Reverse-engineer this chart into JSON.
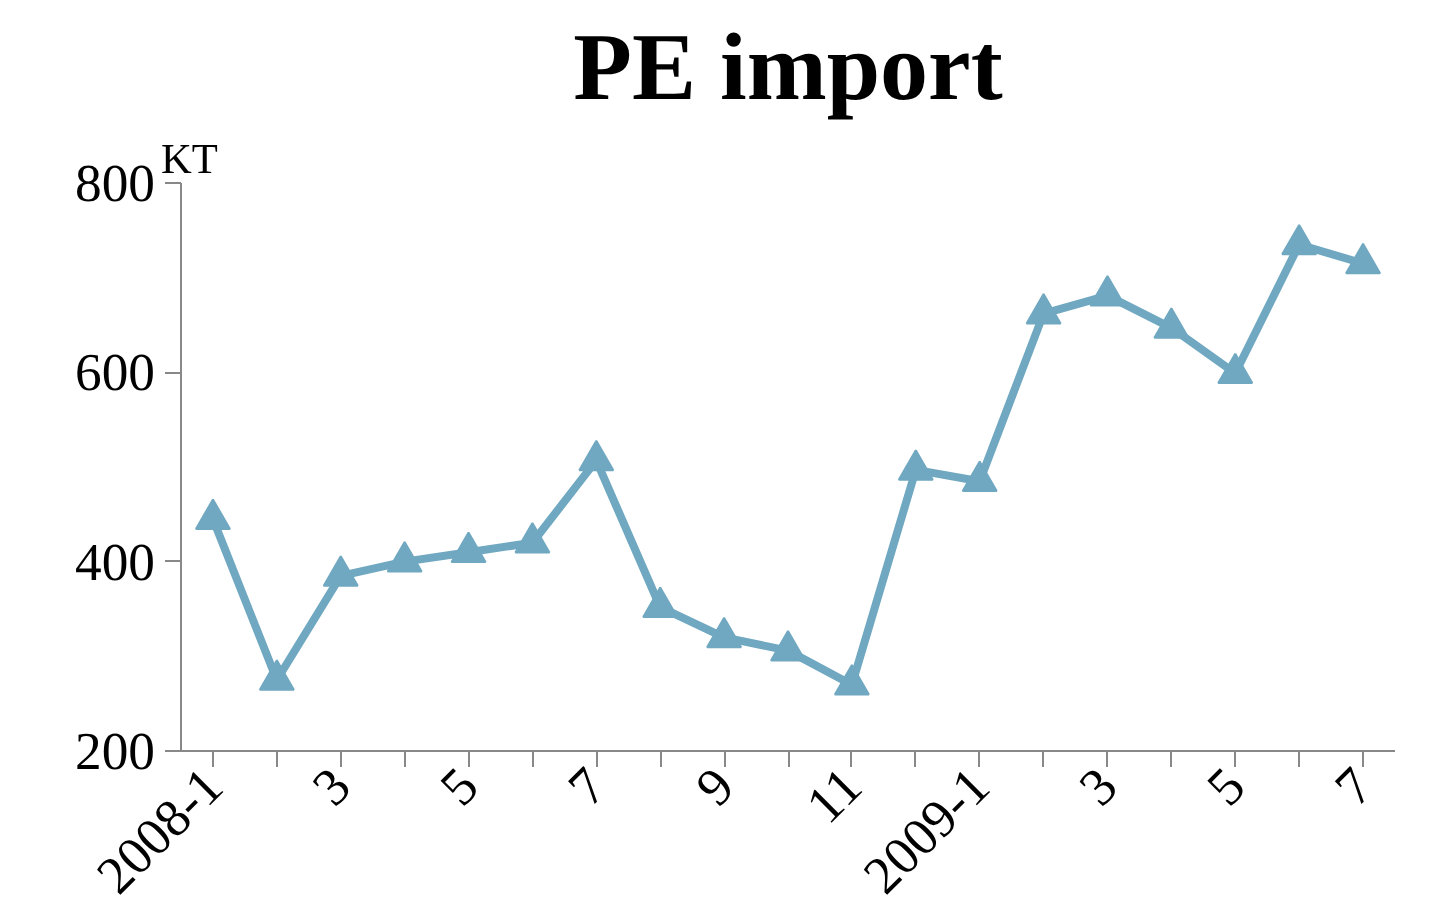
{
  "chart_data": {
    "type": "line",
    "title": "PE import",
    "ylabel": "KT",
    "categories": [
      "2008-1",
      null,
      "3",
      null,
      "5",
      null,
      "7",
      null,
      "9",
      null,
      "11",
      null,
      "2009-1",
      null,
      "3",
      null,
      "5",
      null,
      "7"
    ],
    "series": [
      {
        "color": "#6fa8c0",
        "values": [
          445,
          275,
          385,
          400,
          410,
          420,
          507,
          352,
          320,
          306,
          270,
          497,
          485,
          662,
          681,
          647,
          599,
          735,
          715
        ]
      }
    ],
    "ylim": [
      200,
      800
    ],
    "yticks": [
      200,
      400,
      600,
      800
    ],
    "grid": false,
    "marker": "triangle",
    "line_style": "solid"
  }
}
